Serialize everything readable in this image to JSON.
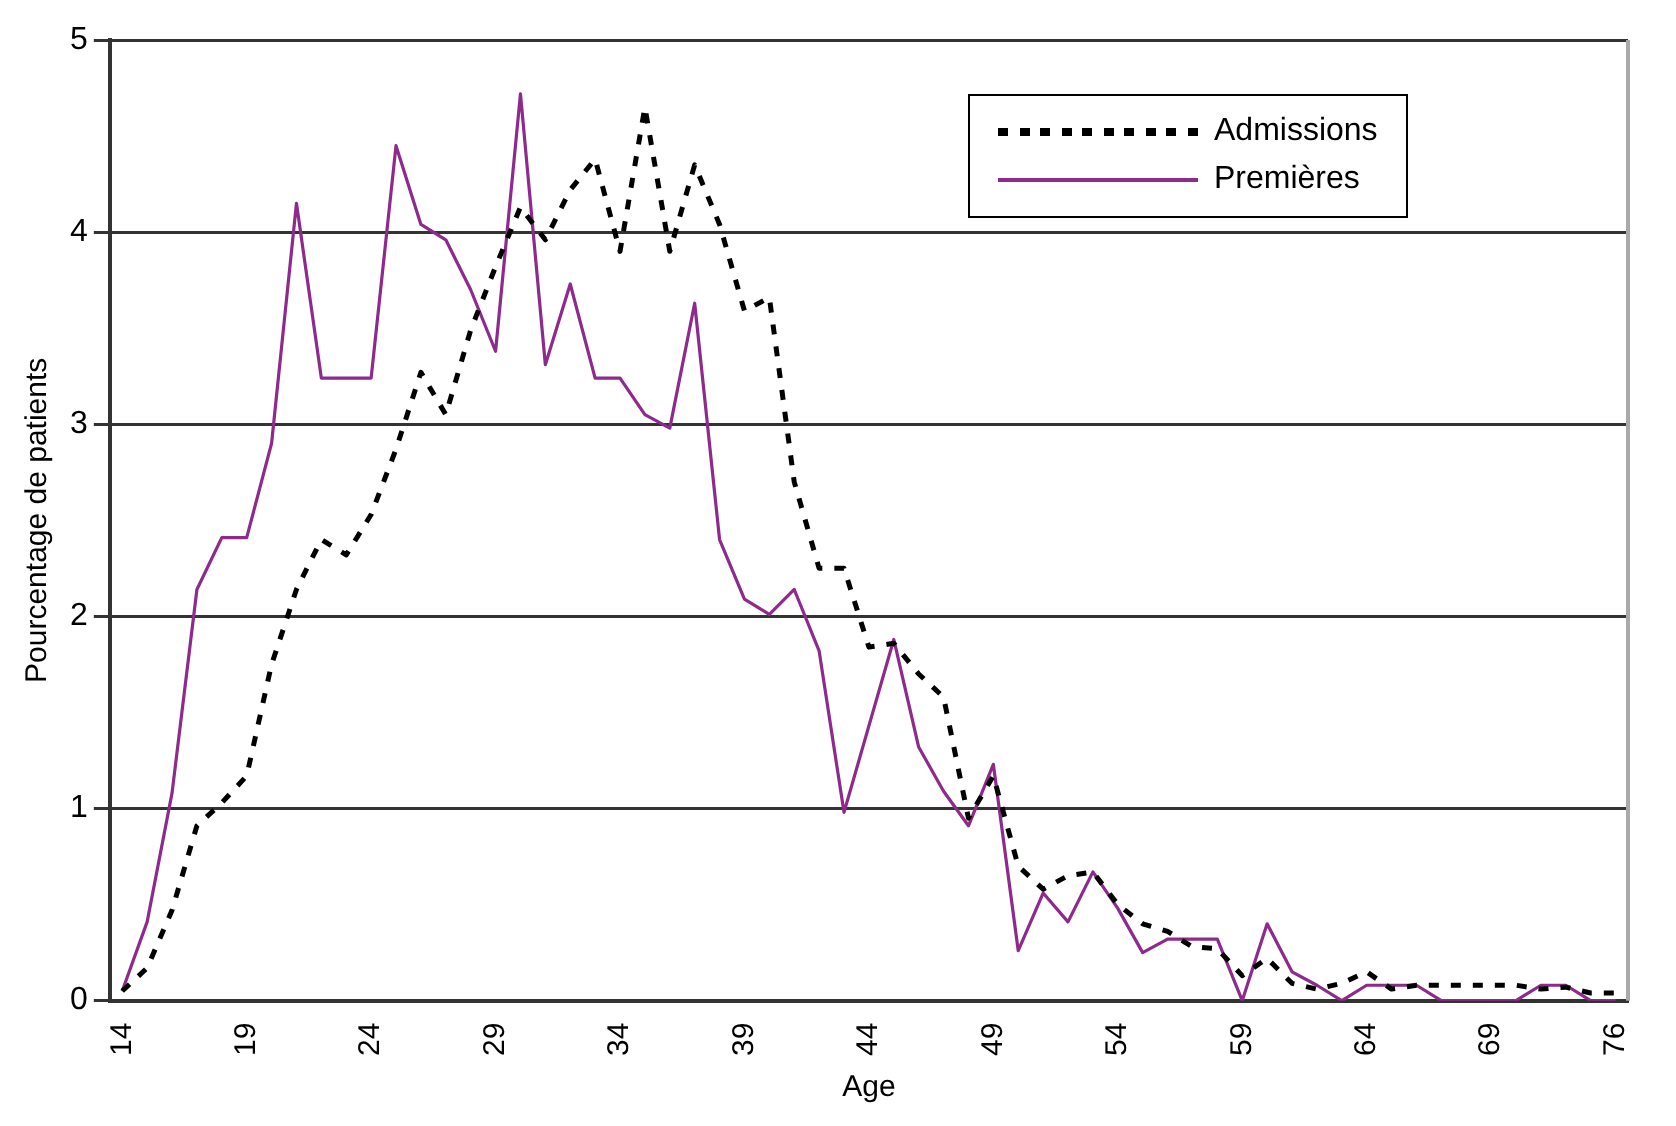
{
  "chart_data": {
    "type": "line",
    "xlabel": "Age",
    "ylabel": "Pourcentage de patients",
    "categories": [
      "14",
      null,
      null,
      null,
      null,
      "19",
      null,
      null,
      null,
      null,
      "24",
      null,
      null,
      null,
      null,
      "29",
      null,
      null,
      null,
      null,
      "34",
      null,
      null,
      null,
      null,
      "39",
      null,
      null,
      null,
      null,
      "44",
      null,
      null,
      null,
      null,
      "49",
      null,
      null,
      null,
      null,
      "54",
      null,
      null,
      null,
      null,
      "59",
      null,
      null,
      null,
      null,
      "64",
      null,
      null,
      null,
      null,
      "69",
      null,
      null,
      null,
      null,
      "76"
    ],
    "series": [
      {
        "name": "Admissions",
        "color": "#000000",
        "line_style": "dotted",
        "values": [
          0.05,
          0.17,
          0.47,
          0.91,
          1.03,
          1.17,
          1.75,
          2.14,
          2.4,
          2.32,
          2.53,
          2.87,
          3.27,
          3.05,
          3.49,
          3.82,
          4.13,
          3.96,
          4.22,
          4.38,
          3.9,
          4.65,
          3.9,
          4.35,
          4.04,
          3.59,
          3.66,
          2.7,
          2.25,
          2.25,
          1.84,
          1.86,
          1.7,
          1.58,
          0.95,
          1.17,
          0.7,
          0.58,
          0.65,
          0.67,
          0.5,
          0.4,
          0.36,
          0.28,
          0.27,
          0.13,
          0.22,
          0.09,
          0.06,
          0.09,
          0.15,
          0.06,
          0.08,
          0.08,
          0.08,
          0.08,
          0.08,
          0.06,
          0.07,
          0.04,
          0.04
        ]
      },
      {
        "name": "Premières",
        "color": "#8e2a8c",
        "line_style": "solid",
        "values": [
          0.05,
          0.41,
          1.08,
          2.14,
          2.41,
          2.41,
          2.9,
          4.15,
          3.24,
          3.24,
          3.24,
          4.45,
          4.04,
          3.96,
          3.7,
          3.38,
          4.72,
          3.31,
          3.73,
          3.24,
          3.24,
          3.05,
          2.98,
          3.63,
          2.4,
          2.09,
          2.01,
          2.14,
          1.82,
          0.98,
          1.43,
          1.88,
          1.32,
          1.09,
          0.91,
          1.23,
          0.26,
          0.56,
          0.41,
          0.67,
          0.48,
          0.25,
          0.32,
          0.32,
          0.32,
          0,
          0.4,
          0.15,
          0.08,
          0,
          0.08,
          0.08,
          0.08,
          0,
          0,
          0,
          0,
          0.08,
          0.08,
          0,
          0
        ]
      }
    ],
    "ylim": [
      0,
      5
    ],
    "yticks": [
      0,
      1,
      2,
      3,
      4,
      5
    ],
    "grid": "y",
    "legend": "top right",
    "marker": "none"
  }
}
